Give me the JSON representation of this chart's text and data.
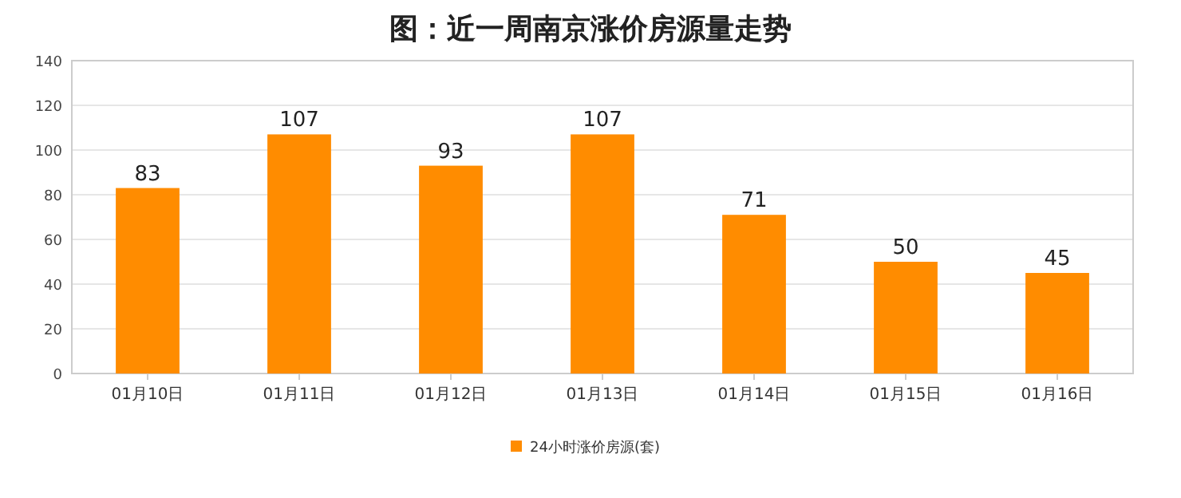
{
  "chart_data": {
    "type": "bar",
    "title": "图：近一周南京涨价房源量走势",
    "categories": [
      "01月10日",
      "01月11日",
      "01月12日",
      "01月13日",
      "01月14日",
      "01月15日",
      "01月16日"
    ],
    "series": [
      {
        "name": "24小时涨价房源(套)",
        "color": "#ff8c00",
        "values": [
          83,
          107,
          93,
          107,
          71,
          50,
          45
        ]
      }
    ],
    "ylim": [
      0,
      140
    ],
    "yticks": [
      0,
      20,
      40,
      60,
      80,
      100,
      120,
      140
    ],
    "grid": "y",
    "legend": "bottom",
    "data_labels": true
  }
}
